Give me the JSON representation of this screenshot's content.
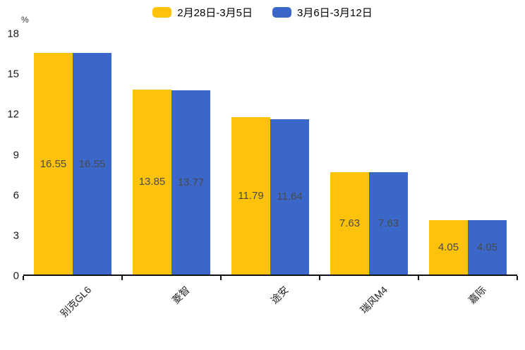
{
  "chart_data": {
    "type": "bar",
    "title": "",
    "xlabel": "",
    "ylabel": "%",
    "ylim": [
      0,
      18
    ],
    "y_ticks": [
      0,
      3,
      6,
      9,
      12,
      15,
      18
    ],
    "grid": false,
    "legend_position": "top-center",
    "value_labels": "inside-center",
    "category_label_rotation_deg": 45,
    "categories": [
      "别克GL6",
      "菱智",
      "途安",
      "瑞风M4",
      "嘉际"
    ],
    "series": [
      {
        "name": "2月28日-3月5日",
        "color": "#FDC30B",
        "values": [
          16.55,
          13.85,
          11.79,
          7.63,
          4.05
        ]
      },
      {
        "name": "3月6日-3月12日",
        "color": "#3A67C8",
        "values": [
          16.55,
          13.77,
          11.64,
          7.63,
          4.05
        ]
      }
    ]
  }
}
